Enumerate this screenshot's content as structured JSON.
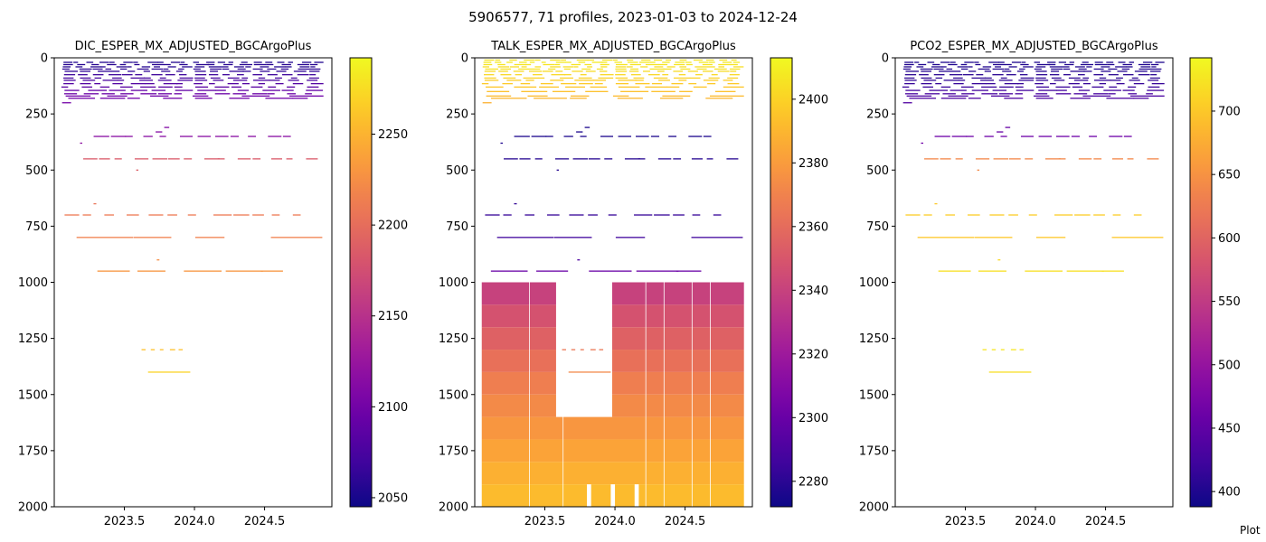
{
  "figure": {
    "suptitle": "5906577, 71 profiles, 2023-01-03 to 2024-12-24",
    "credit": "Plot"
  },
  "colors": {
    "colormap": "plasma",
    "colormap_stops": [
      "#0d0887",
      "#46039f",
      "#7201a8",
      "#9c179e",
      "#bd3786",
      "#d8576b",
      "#ed7953",
      "#fb9f3a",
      "#fdca26",
      "#f0f921"
    ]
  },
  "chart_data": [
    {
      "type": "heatmap",
      "title": "DIC_ESPER_MX_ADJUSTED_BGCArgoPlus",
      "xlabel": "",
      "ylabel": "",
      "xlim": [
        2023.0,
        2024.98
      ],
      "ylim": [
        2000,
        0
      ],
      "y_inverted": true,
      "xticks": [
        2023.5,
        2024.0,
        2024.5
      ],
      "xtick_labels": [
        "2023.5",
        "2024.0",
        "2024.5"
      ],
      "yticks": [
        0,
        250,
        500,
        750,
        1000,
        1250,
        1500,
        1750,
        2000
      ],
      "ytick_labels": [
        "0",
        "250",
        "500",
        "750",
        "1000",
        "1250",
        "1500",
        "1750",
        "2000"
      ],
      "colorbar": {
        "vmin": 2045,
        "vmax": 2292,
        "ticks": [
          2050,
          2100,
          2150,
          2200,
          2250
        ],
        "tick_labels": [
          "2050",
          "2100",
          "2150",
          "2200",
          "2250"
        ]
      },
      "bands": [
        {
          "depth": 20,
          "value": 2055,
          "t0": 2023.05,
          "t1": 2024.92,
          "segments": 22
        },
        {
          "depth": 30,
          "value": 2058,
          "t0": 2023.05,
          "t1": 2024.92,
          "segments": 18
        },
        {
          "depth": 40,
          "value": 2056,
          "t0": 2023.05,
          "t1": 2024.92,
          "segments": 20
        },
        {
          "depth": 50,
          "value": 2060,
          "t0": 2023.05,
          "t1": 2024.92,
          "segments": 18
        },
        {
          "depth": 60,
          "value": 2062,
          "t0": 2023.05,
          "t1": 2024.92,
          "segments": 16
        },
        {
          "depth": 75,
          "value": 2068,
          "t0": 2023.05,
          "t1": 2024.92,
          "segments": 18
        },
        {
          "depth": 90,
          "value": 2072,
          "t0": 2023.05,
          "t1": 2024.92,
          "segments": 16
        },
        {
          "depth": 100,
          "value": 2075,
          "t0": 2023.05,
          "t1": 2024.92,
          "segments": 14
        },
        {
          "depth": 115,
          "value": 2080,
          "t0": 2023.05,
          "t1": 2024.92,
          "segments": 16
        },
        {
          "depth": 130,
          "value": 2085,
          "t0": 2023.05,
          "t1": 2024.92,
          "segments": 14
        },
        {
          "depth": 145,
          "value": 2090,
          "t0": 2023.05,
          "t1": 2024.92,
          "segments": 12
        },
        {
          "depth": 160,
          "value": 2095,
          "t0": 2023.05,
          "t1": 2024.92,
          "segments": 14
        },
        {
          "depth": 170,
          "value": 2098,
          "t0": 2023.05,
          "t1": 2024.92,
          "segments": 6
        },
        {
          "depth": 180,
          "value": 2100,
          "t0": 2023.05,
          "t1": 2024.92,
          "segments": 8
        },
        {
          "depth": 200,
          "value": 2102,
          "t0": 2023.05,
          "t1": 2023.12,
          "segments": 1
        },
        {
          "depth": 310,
          "value": 2110,
          "t0": 2023.78,
          "t1": 2023.82,
          "segments": 1
        },
        {
          "depth": 330,
          "value": 2112,
          "t0": 2023.72,
          "t1": 2023.77,
          "segments": 1
        },
        {
          "depth": 350,
          "value": 2115,
          "t0": 2023.25,
          "t1": 2024.75,
          "segments": 12
        },
        {
          "depth": 380,
          "value": 2118,
          "t0": 2023.18,
          "t1": 2023.2,
          "segments": 1
        },
        {
          "depth": 450,
          "value": 2185,
          "t0": 2023.18,
          "t1": 2024.9,
          "segments": 14
        },
        {
          "depth": 500,
          "value": 2188,
          "t0": 2023.58,
          "t1": 2023.6,
          "segments": 1
        },
        {
          "depth": 650,
          "value": 2205,
          "t0": 2023.28,
          "t1": 2023.3,
          "segments": 1
        },
        {
          "depth": 700,
          "value": 2210,
          "t0": 2023.05,
          "t1": 2024.85,
          "segments": 12
        },
        {
          "depth": 800,
          "value": 2215,
          "t0": 2023.05,
          "t1": 2024.92,
          "segments": 4
        },
        {
          "depth": 900,
          "value": 2225,
          "t0": 2023.73,
          "t1": 2023.75,
          "segments": 1
        },
        {
          "depth": 950,
          "value": 2230,
          "t0": 2023.25,
          "t1": 2024.75,
          "segments": 5
        },
        {
          "depth": 1300,
          "value": 2258,
          "t0": 2023.62,
          "t1": 2023.95,
          "segments": 5
        },
        {
          "depth": 1400,
          "value": 2270,
          "t0": 2023.58,
          "t1": 2023.97,
          "segments": 1
        }
      ],
      "blocks": []
    },
    {
      "type": "heatmap",
      "title": "TALK_ESPER_MX_ADJUSTED_BGCArgoPlus",
      "xlabel": "",
      "ylabel": "",
      "xlim": [
        2023.0,
        2024.98
      ],
      "ylim": [
        2000,
        0
      ],
      "y_inverted": true,
      "xticks": [
        2023.5,
        2024.0,
        2024.5
      ],
      "xtick_labels": [
        "2023.5",
        "2024.0",
        "2024.5"
      ],
      "yticks": [
        0,
        250,
        500,
        750,
        1000,
        1250,
        1500,
        1750,
        2000
      ],
      "ytick_labels": [
        "0",
        "250",
        "500",
        "750",
        "1000",
        "1250",
        "1500",
        "1750",
        "2000"
      ],
      "colorbar": {
        "vmin": 2272,
        "vmax": 2413,
        "ticks": [
          2280,
          2300,
          2320,
          2340,
          2360,
          2380,
          2400
        ],
        "tick_labels": [
          "2280",
          "2300",
          "2320",
          "2340",
          "2360",
          "2380",
          "2400"
        ]
      },
      "bands": [
        {
          "depth": 10,
          "value": 2405,
          "t0": 2023.05,
          "t1": 2024.92,
          "segments": 20
        },
        {
          "depth": 20,
          "value": 2408,
          "t0": 2023.05,
          "t1": 2024.92,
          "segments": 22
        },
        {
          "depth": 30,
          "value": 2406,
          "t0": 2023.05,
          "t1": 2024.92,
          "segments": 18
        },
        {
          "depth": 40,
          "value": 2404,
          "t0": 2023.05,
          "t1": 2024.92,
          "segments": 20
        },
        {
          "depth": 50,
          "value": 2405,
          "t0": 2023.05,
          "t1": 2024.92,
          "segments": 16
        },
        {
          "depth": 60,
          "value": 2403,
          "t0": 2023.05,
          "t1": 2024.92,
          "segments": 18
        },
        {
          "depth": 75,
          "value": 2402,
          "t0": 2023.05,
          "t1": 2024.92,
          "segments": 16
        },
        {
          "depth": 90,
          "value": 2400,
          "t0": 2023.05,
          "t1": 2024.92,
          "segments": 14
        },
        {
          "depth": 100,
          "value": 2398,
          "t0": 2023.05,
          "t1": 2024.92,
          "segments": 12
        },
        {
          "depth": 115,
          "value": 2397,
          "t0": 2023.05,
          "t1": 2024.92,
          "segments": 14
        },
        {
          "depth": 130,
          "value": 2396,
          "t0": 2023.05,
          "t1": 2024.92,
          "segments": 10
        },
        {
          "depth": 150,
          "value": 2394,
          "t0": 2023.05,
          "t1": 2024.92,
          "segments": 8
        },
        {
          "depth": 170,
          "value": 2392,
          "t0": 2023.05,
          "t1": 2024.92,
          "segments": 6
        },
        {
          "depth": 180,
          "value": 2390,
          "t0": 2023.05,
          "t1": 2024.92,
          "segments": 6
        },
        {
          "depth": 200,
          "value": 2388,
          "t0": 2023.05,
          "t1": 2023.12,
          "segments": 1
        },
        {
          "depth": 310,
          "value": 2276,
          "t0": 2023.78,
          "t1": 2023.82,
          "segments": 1
        },
        {
          "depth": 330,
          "value": 2276,
          "t0": 2023.72,
          "t1": 2023.77,
          "segments": 1
        },
        {
          "depth": 350,
          "value": 2276,
          "t0": 2023.25,
          "t1": 2024.75,
          "segments": 12
        },
        {
          "depth": 380,
          "value": 2277,
          "t0": 2023.18,
          "t1": 2023.2,
          "segments": 1
        },
        {
          "depth": 450,
          "value": 2279,
          "t0": 2023.18,
          "t1": 2024.9,
          "segments": 14
        },
        {
          "depth": 500,
          "value": 2279,
          "t0": 2023.58,
          "t1": 2023.6,
          "segments": 1
        },
        {
          "depth": 650,
          "value": 2282,
          "t0": 2023.28,
          "t1": 2023.3,
          "segments": 1
        },
        {
          "depth": 700,
          "value": 2283,
          "t0": 2023.05,
          "t1": 2024.85,
          "segments": 12
        },
        {
          "depth": 800,
          "value": 2286,
          "t0": 2023.05,
          "t1": 2024.92,
          "segments": 4
        },
        {
          "depth": 900,
          "value": 2290,
          "t0": 2023.73,
          "t1": 2023.75,
          "segments": 1
        },
        {
          "depth": 950,
          "value": 2300,
          "t0": 2023.05,
          "t1": 2024.75,
          "segments": 5
        },
        {
          "depth": 1300,
          "value": 2365,
          "t0": 2023.62,
          "t1": 2023.95,
          "segments": 5
        },
        {
          "depth": 1400,
          "value": 2372,
          "t0": 2023.58,
          "t1": 2023.97,
          "segments": 1
        }
      ],
      "blocks": [
        {
          "d0": 1000,
          "d1": 1100,
          "value": 2340,
          "t0": 2023.05,
          "t1": 2023.58
        },
        {
          "d0": 1100,
          "d1": 1200,
          "value": 2348,
          "t0": 2023.05,
          "t1": 2023.58
        },
        {
          "d0": 1200,
          "d1": 1300,
          "value": 2355,
          "t0": 2023.05,
          "t1": 2023.58
        },
        {
          "d0": 1300,
          "d1": 1400,
          "value": 2362,
          "t0": 2023.05,
          "t1": 2023.58
        },
        {
          "d0": 1400,
          "d1": 1500,
          "value": 2368,
          "t0": 2023.05,
          "t1": 2023.58
        },
        {
          "d0": 1500,
          "d1": 1600,
          "value": 2373,
          "t0": 2023.05,
          "t1": 2023.58
        },
        {
          "d0": 1600,
          "d1": 1700,
          "value": 2378,
          "t0": 2023.05,
          "t1": 2024.92
        },
        {
          "d0": 1700,
          "d1": 1800,
          "value": 2383,
          "t0": 2023.05,
          "t1": 2024.92
        },
        {
          "d0": 1800,
          "d1": 1900,
          "value": 2388,
          "t0": 2023.05,
          "t1": 2024.92
        },
        {
          "d0": 1900,
          "d1": 2000,
          "value": 2392,
          "t0": 2023.05,
          "t1": 2024.92
        },
        {
          "d0": 1000,
          "d1": 1100,
          "value": 2340,
          "t0": 2023.98,
          "t1": 2024.92
        },
        {
          "d0": 1100,
          "d1": 1200,
          "value": 2348,
          "t0": 2023.98,
          "t1": 2024.92
        },
        {
          "d0": 1200,
          "d1": 1300,
          "value": 2355,
          "t0": 2023.98,
          "t1": 2024.92
        },
        {
          "d0": 1300,
          "d1": 1400,
          "value": 2362,
          "t0": 2023.98,
          "t1": 2024.92
        },
        {
          "d0": 1400,
          "d1": 1500,
          "value": 2368,
          "t0": 2023.98,
          "t1": 2024.92
        },
        {
          "d0": 1500,
          "d1": 1600,
          "value": 2373,
          "t0": 2023.98,
          "t1": 2024.92
        }
      ],
      "gaps": [
        {
          "t0": 2023.8,
          "t1": 2023.83,
          "d0": 1900,
          "d1": 2000
        },
        {
          "t0": 2023.97,
          "t1": 2024.0,
          "d0": 1900,
          "d1": 2000
        },
        {
          "t0": 2024.14,
          "t1": 2024.17,
          "d0": 1900,
          "d1": 2000
        }
      ]
    },
    {
      "type": "heatmap",
      "title": "PCO2_ESPER_MX_ADJUSTED_BGCArgoPlus",
      "xlabel": "",
      "ylabel": "",
      "xlim": [
        2023.0,
        2024.98
      ],
      "ylim": [
        2000,
        0
      ],
      "y_inverted": true,
      "xticks": [
        2023.5,
        2024.0,
        2024.5
      ],
      "xtick_labels": [
        "2023.5",
        "2024.0",
        "2024.5"
      ],
      "yticks": [
        0,
        250,
        500,
        750,
        1000,
        1250,
        1500,
        1750,
        2000
      ],
      "ytick_labels": [
        "0",
        "250",
        "500",
        "750",
        "1000",
        "1250",
        "1500",
        "1750",
        "2000"
      ],
      "colorbar": {
        "vmin": 388,
        "vmax": 742,
        "ticks": [
          400,
          450,
          500,
          550,
          600,
          650,
          700
        ],
        "tick_labels": [
          "400",
          "450",
          "500",
          "550",
          "600",
          "650",
          "700"
        ]
      },
      "bands": [
        {
          "depth": 20,
          "value": 400,
          "t0": 2023.05,
          "t1": 2024.92,
          "segments": 22
        },
        {
          "depth": 30,
          "value": 402,
          "t0": 2023.05,
          "t1": 2024.92,
          "segments": 18
        },
        {
          "depth": 40,
          "value": 401,
          "t0": 2023.05,
          "t1": 2024.92,
          "segments": 20
        },
        {
          "depth": 50,
          "value": 403,
          "t0": 2023.05,
          "t1": 2024.92,
          "segments": 18
        },
        {
          "depth": 60,
          "value": 405,
          "t0": 2023.05,
          "t1": 2024.92,
          "segments": 16
        },
        {
          "depth": 75,
          "value": 408,
          "t0": 2023.05,
          "t1": 2024.92,
          "segments": 18
        },
        {
          "depth": 90,
          "value": 410,
          "t0": 2023.05,
          "t1": 2024.92,
          "segments": 16
        },
        {
          "depth": 100,
          "value": 412,
          "t0": 2023.05,
          "t1": 2024.92,
          "segments": 14
        },
        {
          "depth": 115,
          "value": 416,
          "t0": 2023.05,
          "t1": 2024.92,
          "segments": 16
        },
        {
          "depth": 130,
          "value": 420,
          "t0": 2023.05,
          "t1": 2024.92,
          "segments": 14
        },
        {
          "depth": 145,
          "value": 425,
          "t0": 2023.05,
          "t1": 2024.92,
          "segments": 12
        },
        {
          "depth": 160,
          "value": 430,
          "t0": 2023.05,
          "t1": 2024.92,
          "segments": 14
        },
        {
          "depth": 170,
          "value": 433,
          "t0": 2023.05,
          "t1": 2024.92,
          "segments": 6
        },
        {
          "depth": 180,
          "value": 436,
          "t0": 2023.05,
          "t1": 2024.92,
          "segments": 8
        },
        {
          "depth": 200,
          "value": 438,
          "t0": 2023.05,
          "t1": 2023.12,
          "segments": 1
        },
        {
          "depth": 310,
          "value": 455,
          "t0": 2023.78,
          "t1": 2023.82,
          "segments": 1
        },
        {
          "depth": 330,
          "value": 458,
          "t0": 2023.72,
          "t1": 2023.77,
          "segments": 1
        },
        {
          "depth": 350,
          "value": 462,
          "t0": 2023.25,
          "t1": 2024.75,
          "segments": 12
        },
        {
          "depth": 380,
          "value": 466,
          "t0": 2023.18,
          "t1": 2023.2,
          "segments": 1
        },
        {
          "depth": 450,
          "value": 640,
          "t0": 2023.18,
          "t1": 2024.9,
          "segments": 14
        },
        {
          "depth": 500,
          "value": 642,
          "t0": 2023.58,
          "t1": 2023.6,
          "segments": 1
        },
        {
          "depth": 650,
          "value": 700,
          "t0": 2023.28,
          "t1": 2023.3,
          "segments": 1
        },
        {
          "depth": 700,
          "value": 705,
          "t0": 2023.05,
          "t1": 2024.85,
          "segments": 12
        },
        {
          "depth": 800,
          "value": 700,
          "t0": 2023.05,
          "t1": 2024.92,
          "segments": 4
        },
        {
          "depth": 900,
          "value": 715,
          "t0": 2023.73,
          "t1": 2023.75,
          "segments": 1
        },
        {
          "depth": 950,
          "value": 720,
          "t0": 2023.25,
          "t1": 2024.75,
          "segments": 5
        },
        {
          "depth": 1300,
          "value": 725,
          "t0": 2023.62,
          "t1": 2023.95,
          "segments": 5
        },
        {
          "depth": 1400,
          "value": 720,
          "t0": 2023.58,
          "t1": 2023.97,
          "segments": 1
        }
      ],
      "blocks": []
    }
  ]
}
